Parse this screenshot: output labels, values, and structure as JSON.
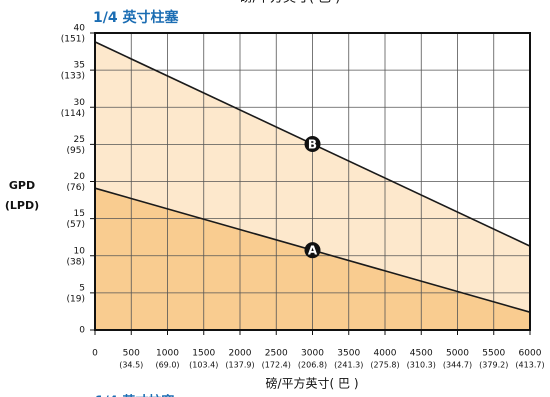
{
  "chart_data": {
    "type": "area-line",
    "title": "1/4 英寸柱塞",
    "x_label": "磅/平方英寸( 巴 )",
    "y_label": [
      "GPD",
      "(LPD)"
    ],
    "xlim": [
      0,
      6000
    ],
    "ylim": [
      0,
      40
    ],
    "xticks": [
      0,
      500,
      1000,
      1500,
      2000,
      2500,
      3000,
      3500,
      4000,
      4500,
      5000,
      5500,
      6000
    ],
    "xtick_sublabels": [
      null,
      "(34.5)",
      "(69.0)",
      "(103.4)",
      "(137.9)",
      "(172.4)",
      "(206.8)",
      "(241.3)",
      "(275.8)",
      "(310.3)",
      "(344.7)",
      "(379.2)",
      "(413.7)"
    ],
    "yticks": [
      0,
      5,
      10,
      15,
      20,
      25,
      30,
      35,
      40
    ],
    "ytick_sublabels": [
      null,
      "(19)",
      "(38)",
      "(57)",
      "(76)",
      "(95)",
      "(114)",
      "(133)",
      "(151)"
    ],
    "grid": true,
    "series": [
      {
        "name": "A",
        "x": [
          0,
          6000
        ],
        "values": [
          19.1,
          2.4
        ],
        "color": "#1a1a1a",
        "fill": "#f9cc90"
      },
      {
        "name": "B",
        "x": [
          0,
          6000
        ],
        "values": [
          38.8,
          11.3
        ],
        "color": "#1a1a1a",
        "fill": "#fde8cc"
      }
    ],
    "markers": [
      {
        "label": "A",
        "x": 3000,
        "value": 10.75
      },
      {
        "label": "B",
        "x": 3000,
        "value": 25.05
      }
    ]
  }
}
